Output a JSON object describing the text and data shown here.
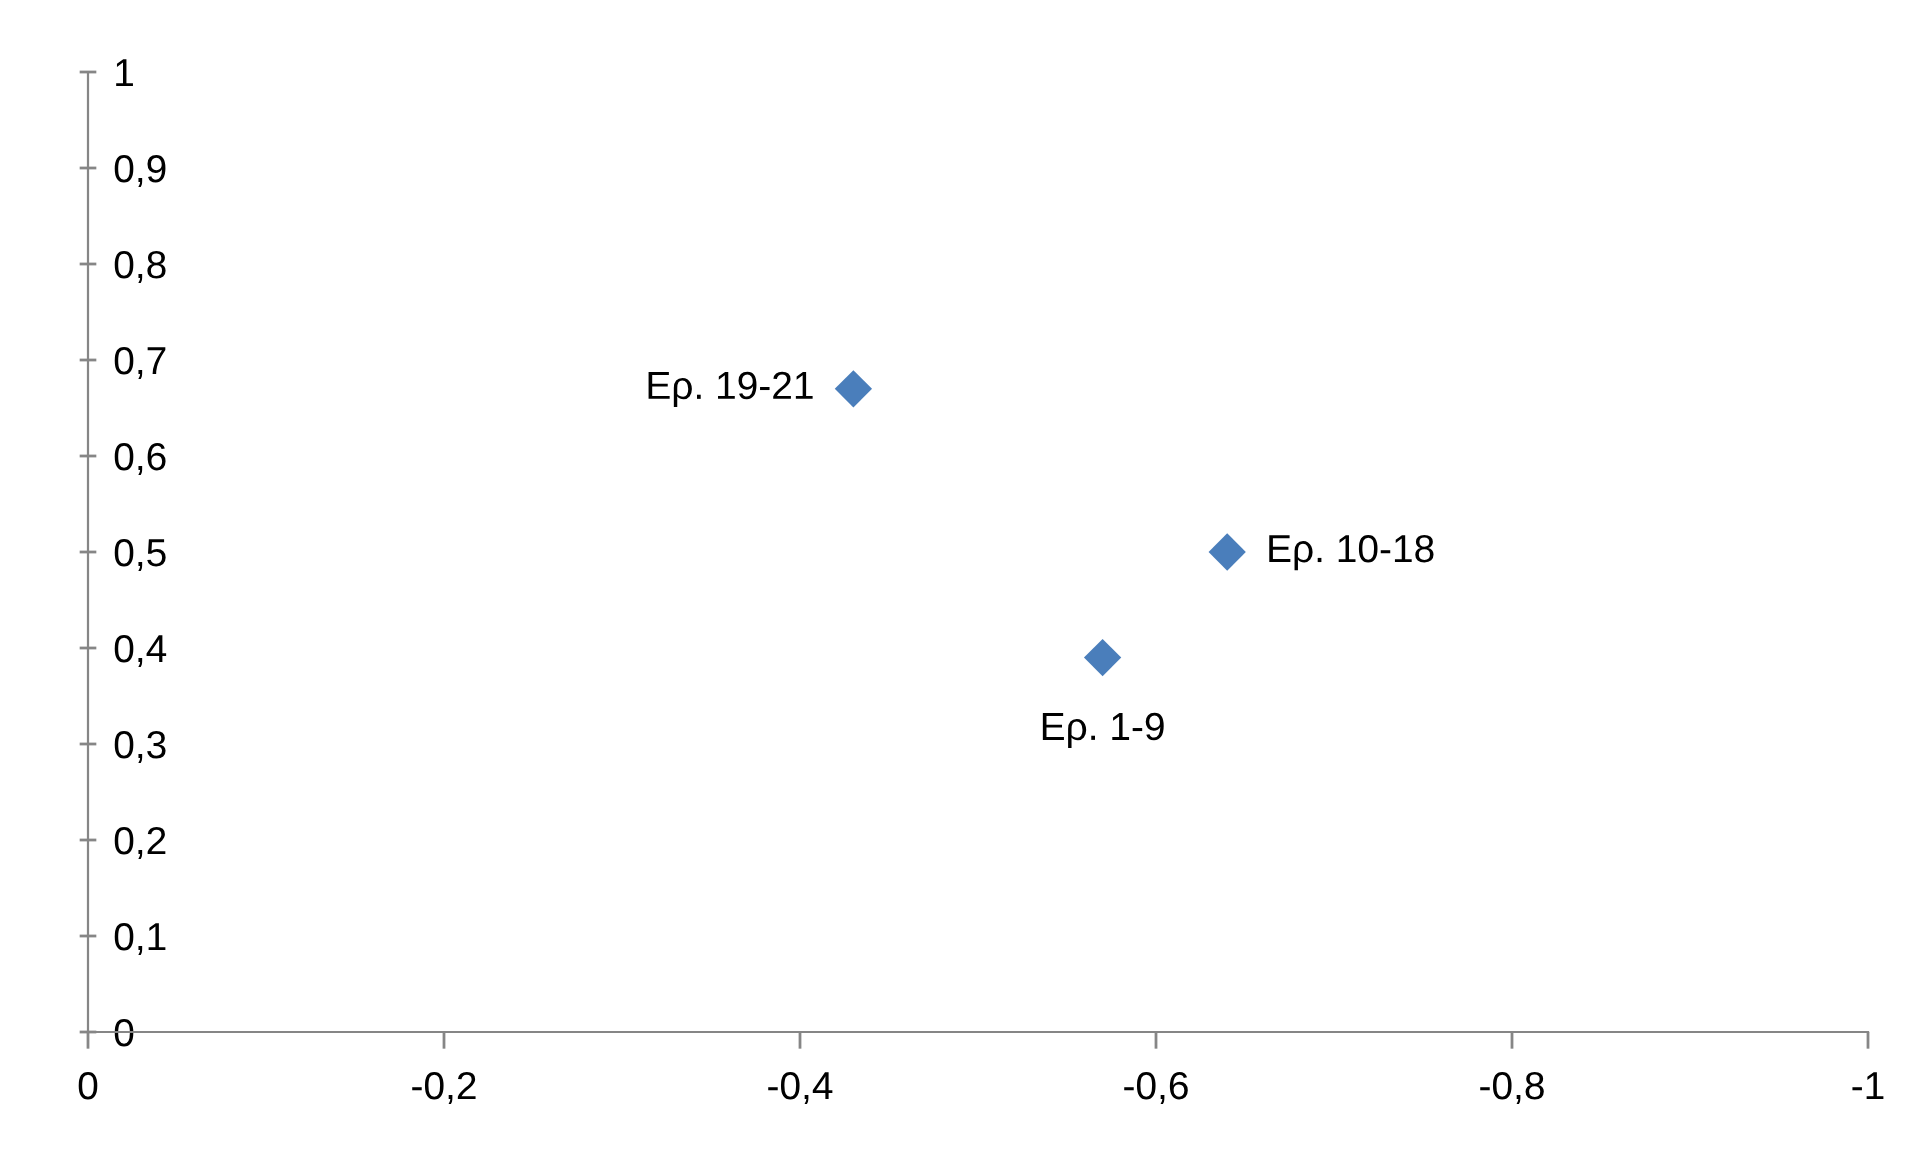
{
  "chart_data": {
    "type": "scatter",
    "x": [
      -0.57,
      -0.64,
      -0.43
    ],
    "values": [
      0.39,
      0.5,
      0.67
    ],
    "color": "#4a7ebb",
    "marker": "diamond",
    "xlim": [
      0,
      -1
    ],
    "ylim": [
      0,
      1
    ],
    "xticks": [
      0,
      {
        "value": -0.2,
        "label": "-0,2"
      },
      {
        "value": -0.4,
        "label": "-0,4"
      },
      {
        "value": -0.6,
        "label": "-0,6"
      },
      {
        "value": -0.8,
        "label": "-0,8"
      },
      -1
    ],
    "yticks": [
      0,
      {
        "value": 0.1,
        "label": "0,1"
      },
      {
        "value": 0.2,
        "label": "0,2"
      },
      {
        "value": 0.3,
        "label": "0,3"
      },
      {
        "value": 0.4,
        "label": "0,4"
      },
      {
        "value": 0.5,
        "label": "0,5"
      },
      {
        "value": 0.6,
        "label": "0,6"
      },
      {
        "value": 0.7,
        "label": "0,7"
      },
      {
        "value": 0.8,
        "label": "0,8"
      },
      {
        "value": 0.9,
        "label": "0,9"
      },
      1
    ],
    "grid": false,
    "legend": false,
    "annotations": [
      {
        "text": "Ερ. 1-9",
        "x": -0.57,
        "y": 0.39
      },
      {
        "text": "Ερ. 10-18",
        "x": -0.64,
        "y": 0.5
      },
      {
        "text": "Ερ. 19-21",
        "x": -0.43,
        "y": 0.67
      }
    ]
  }
}
